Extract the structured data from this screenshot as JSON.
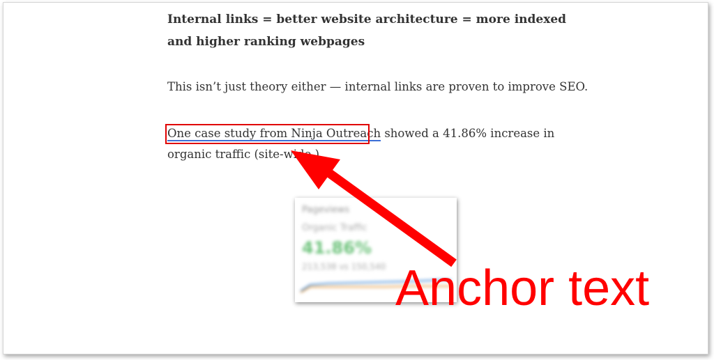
{
  "article": {
    "heading": "Internal links = better website architecture = more indexed and higher ranking webpages",
    "paragraph1": "This isn’t just theory either — internal links are proven to improve SEO.",
    "paragraph2": {
      "link_text": "One case study from Ninja Outreach",
      "rest_text": " showed a 41.86% increase in organic traffic (site-wide.)"
    }
  },
  "annotation": {
    "caption": "Anchor text",
    "highlight_color": "#e00000",
    "caption_color": "#ff0000",
    "link_underline_color": "#3b6ed6"
  },
  "blurred_card": {
    "line1": "Pageviews",
    "line2": "Organic Traffic",
    "line3": "41.86%",
    "line4": "213,538 vs 150,540",
    "accent_color": "#6cc27a",
    "series_colors": [
      "#4a90d9",
      "#e8a04b"
    ]
  }
}
